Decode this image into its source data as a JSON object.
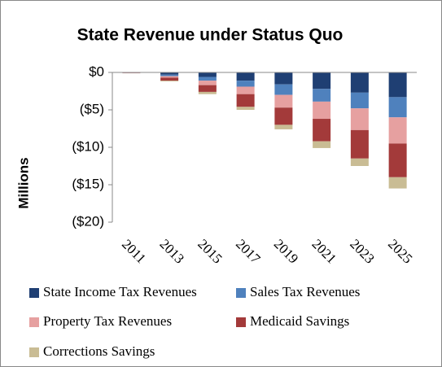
{
  "chart_data": {
    "type": "stacked_bar",
    "title": "State Revenue under Status Quo",
    "y_label": "Millions",
    "categories": [
      "2011",
      "2013",
      "2015",
      "2017",
      "2019",
      "2021",
      "2023",
      "2025"
    ],
    "series": [
      {
        "name": "State Income Tax Revenues",
        "color": "#1f3f73",
        "values": [
          -0.05,
          -0.3,
          -0.6,
          -1.1,
          -1.6,
          -2.2,
          -2.7,
          -3.3
        ]
      },
      {
        "name": "Sales Tax Revenues",
        "color": "#4f81bd",
        "values": [
          -0.02,
          -0.2,
          -0.5,
          -0.8,
          -1.4,
          -1.7,
          -2.1,
          -2.7
        ]
      },
      {
        "name": "Property Tax Revenues",
        "color": "#e6a0a0",
        "values": [
          -0.02,
          -0.2,
          -0.6,
          -1.0,
          -1.7,
          -2.3,
          -2.9,
          -3.5
        ]
      },
      {
        "name": "Medicaid Savings",
        "color": "#a33a3a",
        "values": [
          -0.02,
          -0.4,
          -0.9,
          -1.7,
          -2.3,
          -3.0,
          -3.8,
          -4.5
        ]
      },
      {
        "name": "Corrections Savings",
        "color": "#c9bc94",
        "values": [
          -0.01,
          -0.1,
          -0.3,
          -0.4,
          -0.6,
          -0.9,
          -1.0,
          -1.5
        ]
      }
    ],
    "ylim": [
      -20,
      0
    ],
    "yticks": [
      {
        "value": 0,
        "label": "$0"
      },
      {
        "value": -5,
        "label": "($5)"
      },
      {
        "value": -10,
        "label": "($10)"
      },
      {
        "value": -15,
        "label": "($15)"
      },
      {
        "value": -20,
        "label": "($20)"
      }
    ],
    "grid": false
  }
}
